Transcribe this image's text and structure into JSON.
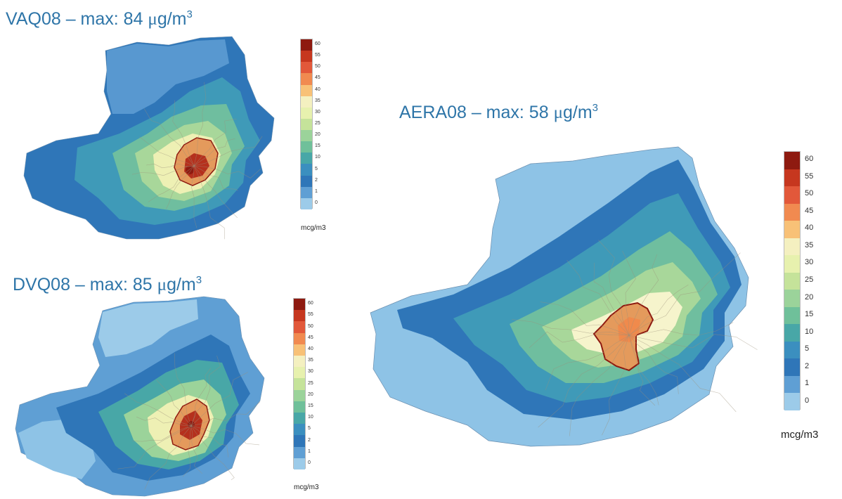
{
  "maps": [
    {
      "id": "vaq08",
      "title_text": "VAQ08 – max: 84 ",
      "unit_prefix": "μ",
      "unit_main": "g/m",
      "unit_exp": "3",
      "legend_unit": "mcg/m3"
    },
    {
      "id": "dvq08",
      "title_text": "DVQ08 – max: 85 ",
      "unit_prefix": "μ",
      "unit_main": "g/m",
      "unit_exp": "3",
      "legend_unit": "mcg/m3"
    },
    {
      "id": "aera08",
      "title_text": "AERA08 – max: 58 ",
      "unit_prefix": "μ",
      "unit_main": "g/m",
      "unit_exp": "3",
      "legend_unit": "mcg/m3"
    }
  ],
  "legend_ticks": [
    "60",
    "55",
    "50",
    "45",
    "40",
    "35",
    "30",
    "25",
    "20",
    "15",
    "10",
    "5",
    "2",
    "1",
    "0"
  ],
  "legend_colors": [
    "#8e1a10",
    "#c6371f",
    "#e2583a",
    "#f18a50",
    "#f8c177",
    "#f4f0c0",
    "#e7f1ae",
    "#c5e39a",
    "#9bd39a",
    "#6fc09a",
    "#48a7a7",
    "#3b8fbf",
    "#2f76b8",
    "#5f9fd4",
    "#9ccbe9"
  ],
  "map_colors": {
    "outer": "#2f76b8",
    "light": "#8ec3e6",
    "mid": "#3f9ab8",
    "teal": "#6fbe9f",
    "green": "#a8d79a",
    "yellow": "#eef0b4",
    "pale": "#f6f4cc",
    "orange": "#e49a5c",
    "red": "#b5301d",
    "darkred": "#8e1a10"
  }
}
